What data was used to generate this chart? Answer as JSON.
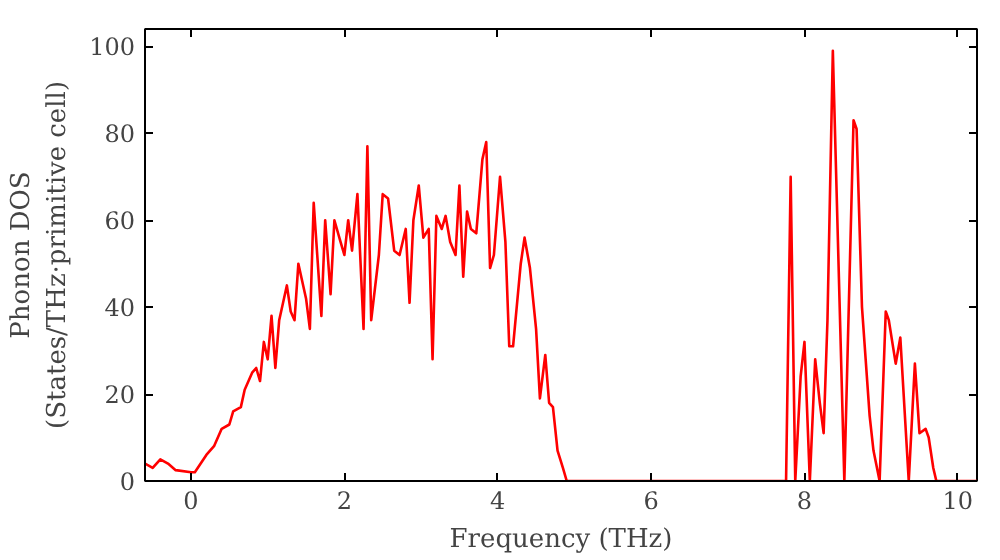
{
  "chart_data": {
    "type": "line",
    "xlabel": "Frequency (THz)",
    "ylabel": "Phonon DOS\n(States/THz·primitive cell)",
    "xlim": [
      -0.6,
      10.25
    ],
    "ylim": [
      0,
      104
    ],
    "xticks": [
      0,
      2,
      4,
      6,
      8,
      10
    ],
    "yticks": [
      0,
      20,
      40,
      60,
      80,
      100
    ],
    "grid": false,
    "series": [
      {
        "color": "#ff0000",
        "x": [
          -0.6,
          -0.5,
          -0.4,
          -0.3,
          -0.2,
          0,
          0.05,
          0.2,
          0.3,
          0.4,
          0.5,
          0.55,
          0.65,
          0.7,
          0.8,
          0.85,
          0.9,
          0.95,
          1.0,
          1.05,
          1.1,
          1.15,
          1.25,
          1.3,
          1.35,
          1.4,
          1.5,
          1.55,
          1.6,
          1.7,
          1.75,
          1.82,
          1.87,
          1.95,
          2.0,
          2.05,
          2.1,
          2.17,
          2.25,
          2.3,
          2.35,
          2.45,
          2.5,
          2.57,
          2.65,
          2.72,
          2.8,
          2.85,
          2.9,
          2.97,
          3.03,
          3.1,
          3.15,
          3.2,
          3.27,
          3.32,
          3.38,
          3.45,
          3.5,
          3.55,
          3.6,
          3.65,
          3.72,
          3.8,
          3.85,
          3.9,
          3.95,
          4.03,
          4.1,
          4.15,
          4.2,
          4.3,
          4.35,
          4.42,
          4.5,
          4.55,
          4.62,
          4.67,
          4.72,
          4.78,
          4.85,
          4.9,
          7.76,
          7.82,
          7.88,
          7.95,
          8.0,
          8.07,
          8.14,
          8.2,
          8.25,
          8.3,
          8.37,
          8.52,
          8.64,
          8.68,
          8.75,
          8.85,
          8.9,
          8.98,
          9.06,
          9.1,
          9.19,
          9.25,
          9.36,
          9.44,
          9.5,
          9.58,
          9.62,
          9.68,
          9.72,
          10.25
        ],
        "values": [
          4,
          3,
          5,
          4,
          2.5,
          2,
          2,
          6,
          8,
          12,
          13,
          16,
          17,
          21,
          25,
          26,
          23,
          32,
          28,
          38,
          26,
          37,
          45,
          39,
          37,
          50,
          42,
          35,
          64,
          38,
          60,
          43,
          60,
          55,
          52,
          60,
          53,
          66,
          35,
          77,
          37,
          52,
          66,
          65,
          53,
          52,
          58,
          41,
          60,
          68,
          56,
          58,
          28,
          61,
          58,
          61,
          55,
          52,
          68,
          47,
          62,
          58,
          57,
          74,
          78,
          49,
          52,
          70,
          55,
          31,
          31,
          50,
          56,
          49,
          35,
          19,
          29,
          18,
          17,
          7,
          3,
          0,
          0,
          70,
          0,
          24,
          32,
          0,
          28,
          18,
          11,
          37,
          99,
          0,
          83,
          81,
          40,
          15,
          7,
          0,
          39,
          37,
          27,
          33,
          0,
          27,
          11,
          12,
          10,
          3,
          0,
          0
        ]
      }
    ]
  }
}
